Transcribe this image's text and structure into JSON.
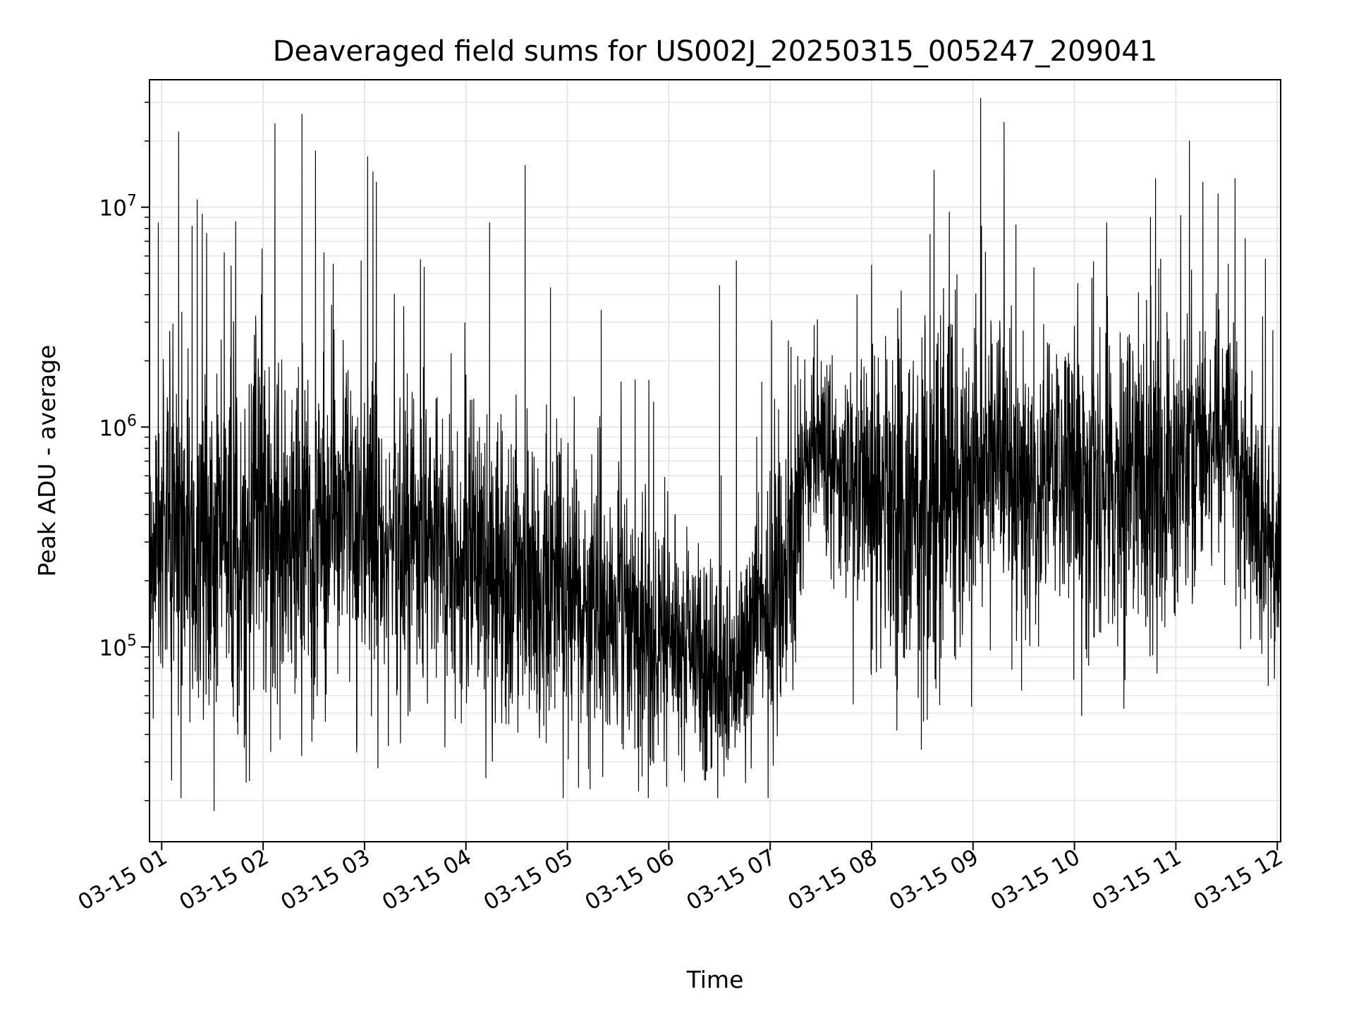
{
  "chart_data": {
    "type": "line",
    "title": "Deaveraged field sums for US002J_20250315_005247_209041",
    "xlabel": "Time",
    "ylabel": "Peak ADU - average",
    "yscale": "log",
    "ylim": [
      13000,
      38000000
    ],
    "y_ticks": [
      {
        "value": 100000,
        "base": "10",
        "exp": "5"
      },
      {
        "value": 1000000,
        "base": "10",
        "exp": "6"
      },
      {
        "value": 10000000,
        "base": "10",
        "exp": "7"
      }
    ],
    "xlim": [
      "2025-03-15T00:52:47",
      "2025-03-15T12:02:00"
    ],
    "x_ticks": [
      {
        "value": "2025-03-15T01:00",
        "label": "03-15 01"
      },
      {
        "value": "2025-03-15T02:00",
        "label": "03-15 02"
      },
      {
        "value": "2025-03-15T03:00",
        "label": "03-15 03"
      },
      {
        "value": "2025-03-15T04:00",
        "label": "03-15 04"
      },
      {
        "value": "2025-03-15T05:00",
        "label": "03-15 05"
      },
      {
        "value": "2025-03-15T06:00",
        "label": "03-15 06"
      },
      {
        "value": "2025-03-15T07:00",
        "label": "03-15 07"
      },
      {
        "value": "2025-03-15T08:00",
        "label": "03-15 08"
      },
      {
        "value": "2025-03-15T09:00",
        "label": "03-15 09"
      },
      {
        "value": "2025-03-15T10:00",
        "label": "03-15 10"
      },
      {
        "value": "2025-03-15T11:00",
        "label": "03-15 11"
      },
      {
        "value": "2025-03-15T12:00",
        "label": "03-15 12"
      }
    ],
    "grid": true,
    "line_color": "#000000",
    "grid_color": "#e6e6e6",
    "series": [
      {
        "x": [
          "2025-03-15T00:53",
          "2025-03-15T00:58",
          "2025-03-15T01:06",
          "2025-03-15T01:10",
          "2025-03-15T01:14",
          "2025-03-15T01:18",
          "2025-03-15T01:21",
          "2025-03-15T01:24",
          "2025-03-15T01:31",
          "2025-03-15T01:37",
          "2025-03-15T01:45",
          "2025-03-15T01:52",
          "2025-03-15T01:59",
          "2025-03-15T02:07",
          "2025-03-15T02:10",
          "2025-03-15T02:16",
          "2025-03-15T02:20",
          "2025-03-15T02:23",
          "2025-03-15T02:28",
          "2025-03-15T02:31",
          "2025-03-15T02:32",
          "2025-03-15T02:36",
          "2025-03-15T02:51",
          "2025-03-15T02:58",
          "2025-03-15T03:02",
          "2025-03-15T03:05",
          "2025-03-15T03:07",
          "2025-03-15T03:40",
          "2025-03-15T03:54",
          "2025-03-15T04:05",
          "2025-03-15T04:14",
          "2025-03-15T04:18",
          "2025-03-15T04:35",
          "2025-03-15T04:50",
          "2025-03-15T05:20",
          "2025-03-15T05:50",
          "2025-03-15T05:51",
          "2025-03-15T06:30",
          "2025-03-15T06:31",
          "2025-03-15T06:40",
          "2025-03-15T06:52",
          "2025-03-15T06:55",
          "2025-03-15T07:05",
          "2025-03-15T07:15",
          "2025-03-15T07:20",
          "2025-03-15T07:26",
          "2025-03-15T07:48",
          "2025-03-15T08:46",
          "2025-03-15T09:05",
          "2025-03-15T09:19",
          "2025-03-15T09:36",
          "2025-03-15T10:02",
          "2025-03-15T10:40",
          "2025-03-15T10:45",
          "2025-03-15T10:48",
          "2025-03-15T10:51",
          "2025-03-15T10:55",
          "2025-03-15T11:02",
          "2025-03-15T11:08",
          "2025-03-15T11:12",
          "2025-03-15T11:16",
          "2025-03-15T11:25",
          "2025-03-15T11:31",
          "2025-03-15T11:35",
          "2025-03-15T11:41",
          "2025-03-15T11:45",
          "2025-03-15T11:53",
          "2025-03-15T12:01"
        ],
        "y": [
          300000,
          8500000,
          1000000,
          22000000,
          250000,
          8200000,
          10800000,
          9300000,
          18000,
          6200000,
          40000,
          55000,
          4000000,
          24000000,
          38000,
          320000,
          1500000,
          26500000,
          200000,
          18000000,
          60000,
          6200000,
          380000,
          5700000,
          240000,
          14500000,
          13000000,
          300000,
          250000,
          250000,
          8500000,
          300000,
          15500000,
          4300000,
          3400000,
          160000,
          1300000,
          4400000,
          600000,
          5700000,
          900000,
          1600000,
          1200000,
          800000,
          600000,
          2900000,
          800000,
          9500000,
          8200000,
          1500000,
          5300000,
          4500000,
          1300000,
          9000000,
          13500000,
          5800000,
          2700000,
          650000,
          20000000,
          850000,
          13000000,
          11500000,
          5500000,
          13500000,
          7200000,
          1800000,
          5800000,
          1000000
        ]
      }
    ]
  }
}
